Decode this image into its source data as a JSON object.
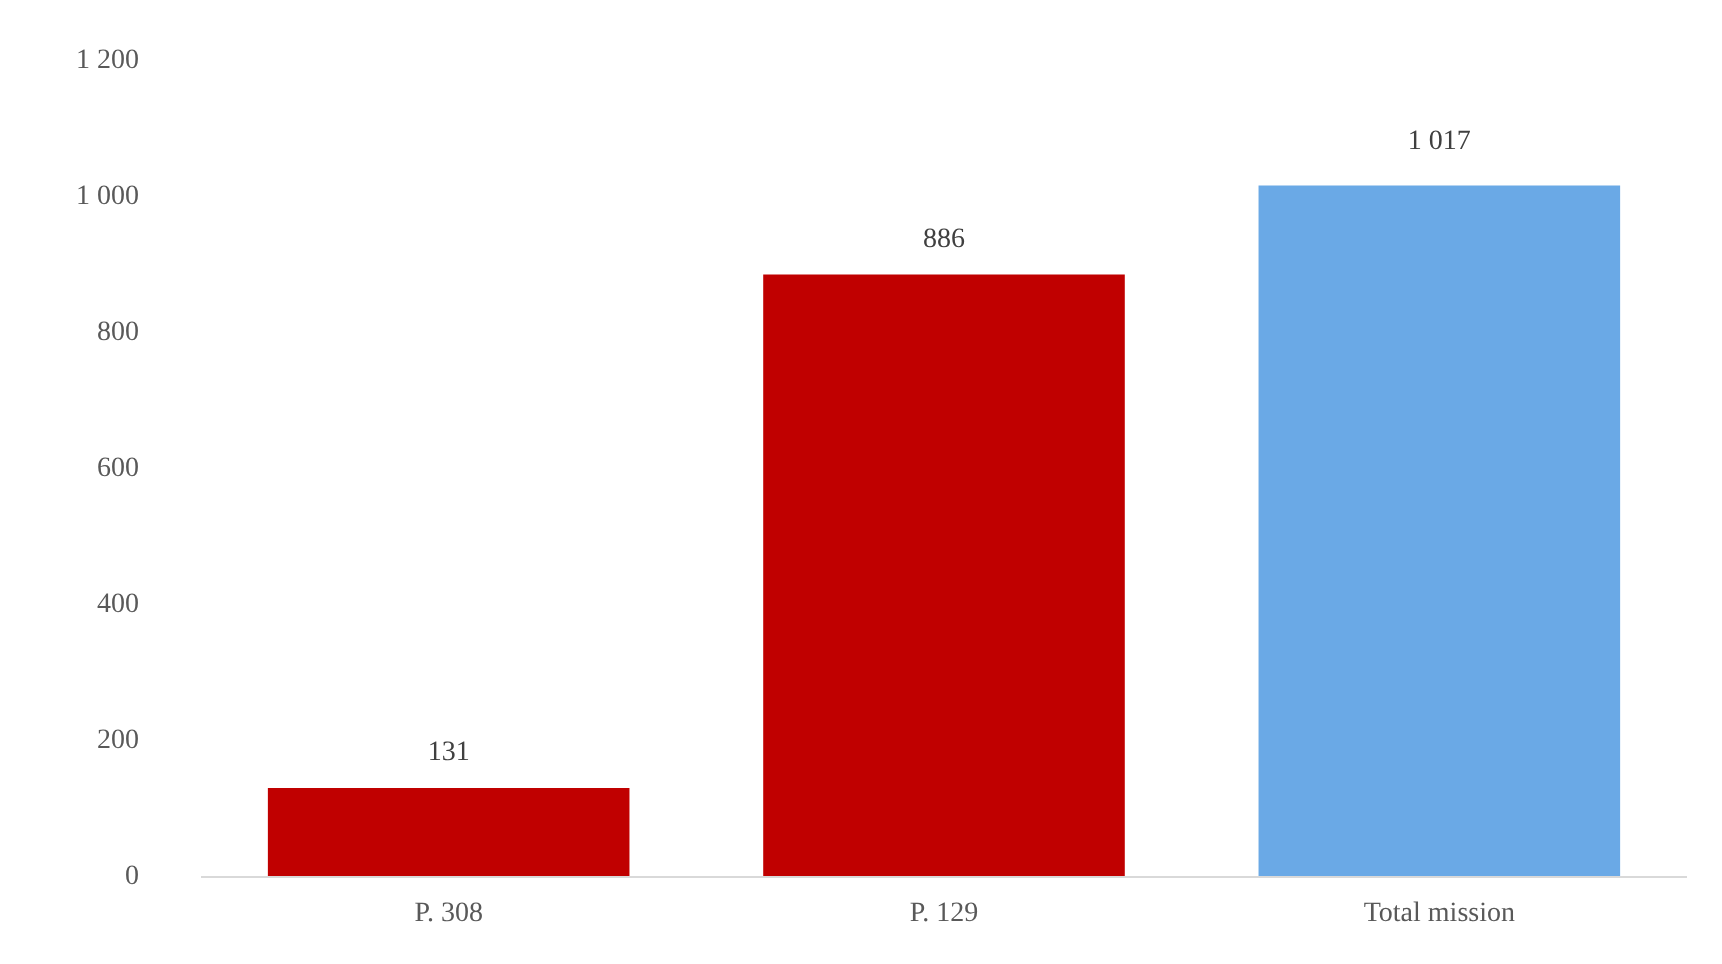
{
  "chart_data": {
    "type": "bar",
    "categories": [
      "P. 308",
      "P. 129",
      "Total mission"
    ],
    "values": [
      131,
      886,
      1017
    ],
    "colors": [
      "#c00000",
      "#c00000",
      "#6aa9e6"
    ],
    "value_labels": [
      "131",
      "886",
      "1 017"
    ],
    "ylim": [
      0,
      1200
    ],
    "yticks": [
      0,
      200,
      400,
      600,
      800,
      {
        "value": 1000,
        "label": "1 000"
      },
      {
        "value": 1200,
        "label": "1 200"
      }
    ],
    "grid": false
  }
}
